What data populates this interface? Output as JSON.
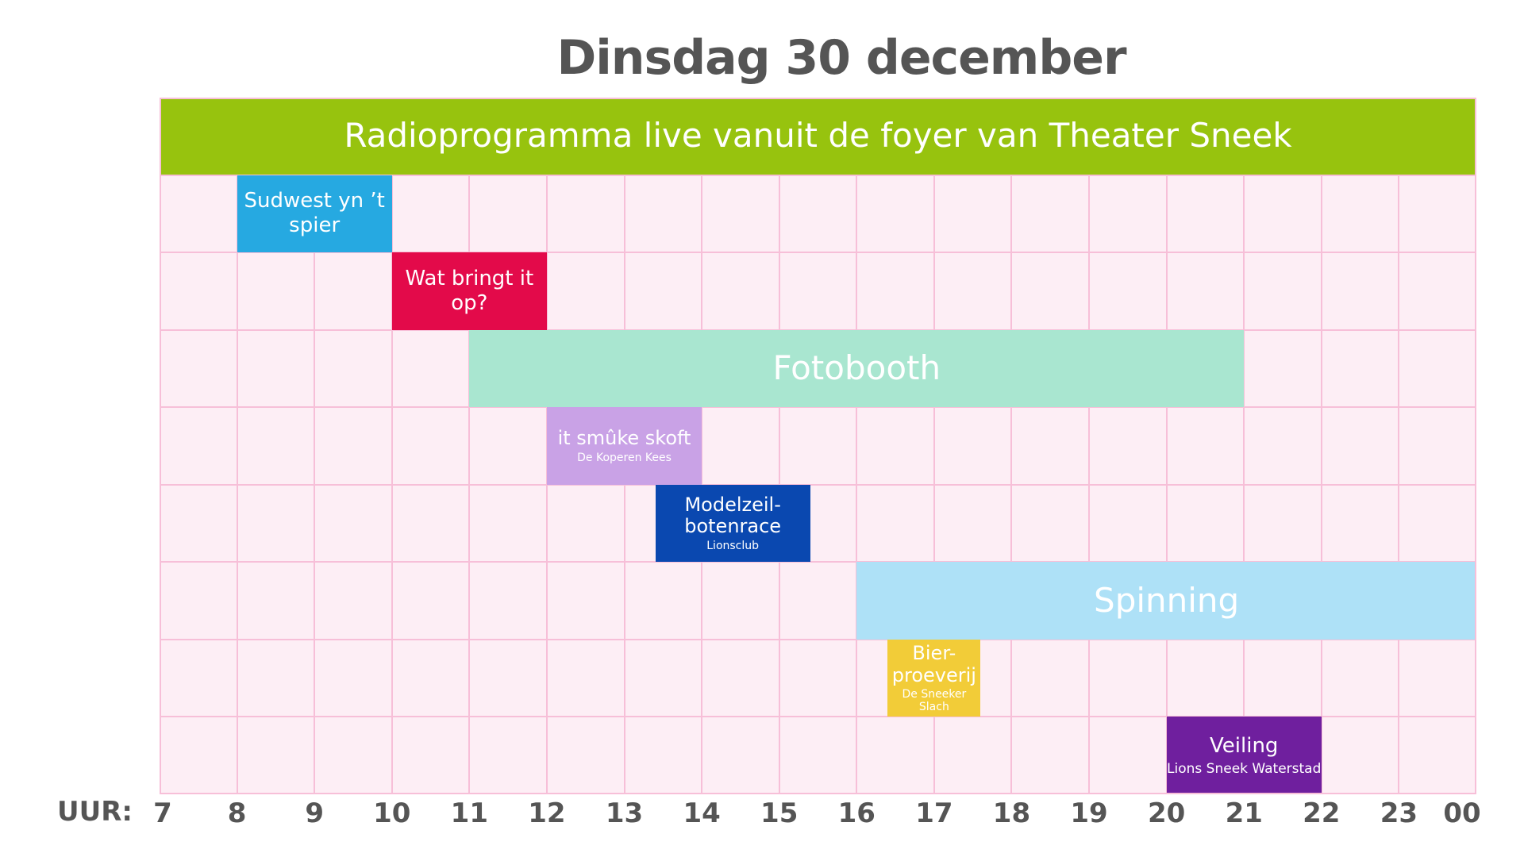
{
  "title": "Dinsdag 30 december",
  "chart_data": {
    "type": "gantt",
    "title": "Dinsdag 30 december",
    "xlabel": "UUR:",
    "x_ticks": [
      "7",
      "8",
      "9",
      "10",
      "11",
      "12",
      "13",
      "14",
      "15",
      "16",
      "17",
      "18",
      "19",
      "20",
      "21",
      "22",
      "23",
      "00"
    ],
    "xlim": [
      7,
      24
    ],
    "row_count": 9,
    "events": [
      {
        "label": "Radioprogramma live vanuit de foyer van Theater Sneek",
        "sublabel": "",
        "row": 0,
        "start": 7,
        "end": 24,
        "color": "#97c30e"
      },
      {
        "label": "Sudwest yn ’t spier",
        "sublabel": "",
        "row": 1,
        "start": 8,
        "end": 10,
        "color": "#26a9e1"
      },
      {
        "label": "Wat bringt it op?",
        "sublabel": "",
        "row": 2,
        "start": 10,
        "end": 12,
        "color": "#e30a4a"
      },
      {
        "label": "Fotobooth",
        "sublabel": "",
        "row": 3,
        "start": 11,
        "end": 21,
        "color": "#a9e6d0"
      },
      {
        "label": "it smûke skoft",
        "sublabel": "De Koperen Kees",
        "row": 4,
        "start": 12,
        "end": 14,
        "color": "#c9a2e6"
      },
      {
        "label": "Modelzeil-botenrace",
        "sublabel": "Lionsclub",
        "row": 5,
        "start": 13.4,
        "end": 15.4,
        "color": "#0a48b0"
      },
      {
        "label": "Spinning",
        "sublabel": "",
        "row": 6,
        "start": 16,
        "end": 24,
        "color": "#aee1f7"
      },
      {
        "label": "Bier-proeverij",
        "sublabel": "De Sneeker Slach",
        "row": 7,
        "start": 16.4,
        "end": 17.6,
        "color": "#f2cc38"
      },
      {
        "label": "Veiling",
        "sublabel": "Lions Sneek Waterstad",
        "row": 8,
        "start": 20,
        "end": 22,
        "color": "#6f1f9e"
      }
    ],
    "grid": true
  }
}
